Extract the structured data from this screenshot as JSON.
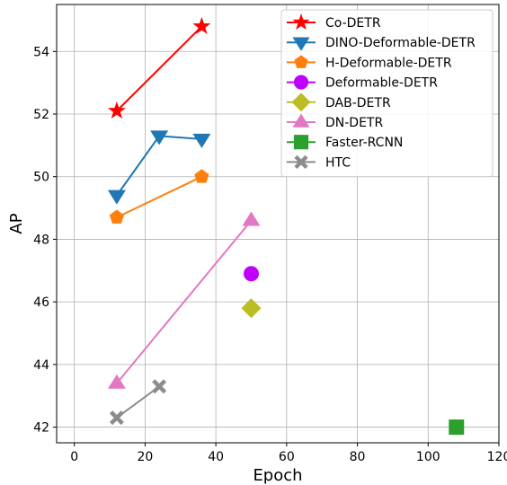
{
  "chart_data": {
    "type": "line",
    "xlabel": "Epoch",
    "ylabel": "AP",
    "xlim": [
      -5,
      120
    ],
    "ylim": [
      41.5,
      55.5
    ],
    "xticks": [
      0,
      20,
      40,
      60,
      80,
      100,
      120
    ],
    "yticks": [
      42,
      44,
      46,
      48,
      50,
      52,
      54
    ],
    "grid": true,
    "legend_position": "top-right",
    "series": [
      {
        "name": "Co-DETR",
        "color": "#ff0000",
        "marker": "star",
        "x": [
          12,
          36
        ],
        "y": [
          52.1,
          54.8
        ]
      },
      {
        "name": "DINO-Deformable-DETR",
        "color": "#1f77b4",
        "marker": "triangle-down",
        "x": [
          12,
          24,
          36
        ],
        "y": [
          49.4,
          51.3,
          51.2
        ]
      },
      {
        "name": "H-Deformable-DETR",
        "color": "#ff7f0e",
        "marker": "pentagon",
        "x": [
          12,
          36
        ],
        "y": [
          48.7,
          50.0
        ]
      },
      {
        "name": "Deformable-DETR",
        "color": "#bf00ff",
        "marker": "circle",
        "x": [
          50
        ],
        "y": [
          46.9
        ]
      },
      {
        "name": "DAB-DETR",
        "color": "#bcbd22",
        "marker": "diamond",
        "x": [
          50
        ],
        "y": [
          45.8
        ]
      },
      {
        "name": "DN-DETR",
        "color": "#e377c2",
        "marker": "triangle-up",
        "x": [
          12,
          50
        ],
        "y": [
          43.4,
          48.6
        ]
      },
      {
        "name": "Faster-RCNN",
        "color": "#2ca02c",
        "marker": "square",
        "x": [
          108
        ],
        "y": [
          42.0
        ]
      },
      {
        "name": "HTC",
        "color": "#8c8c8c",
        "marker": "x-filled",
        "x": [
          12,
          24
        ],
        "y": [
          42.3,
          43.3
        ]
      }
    ]
  }
}
